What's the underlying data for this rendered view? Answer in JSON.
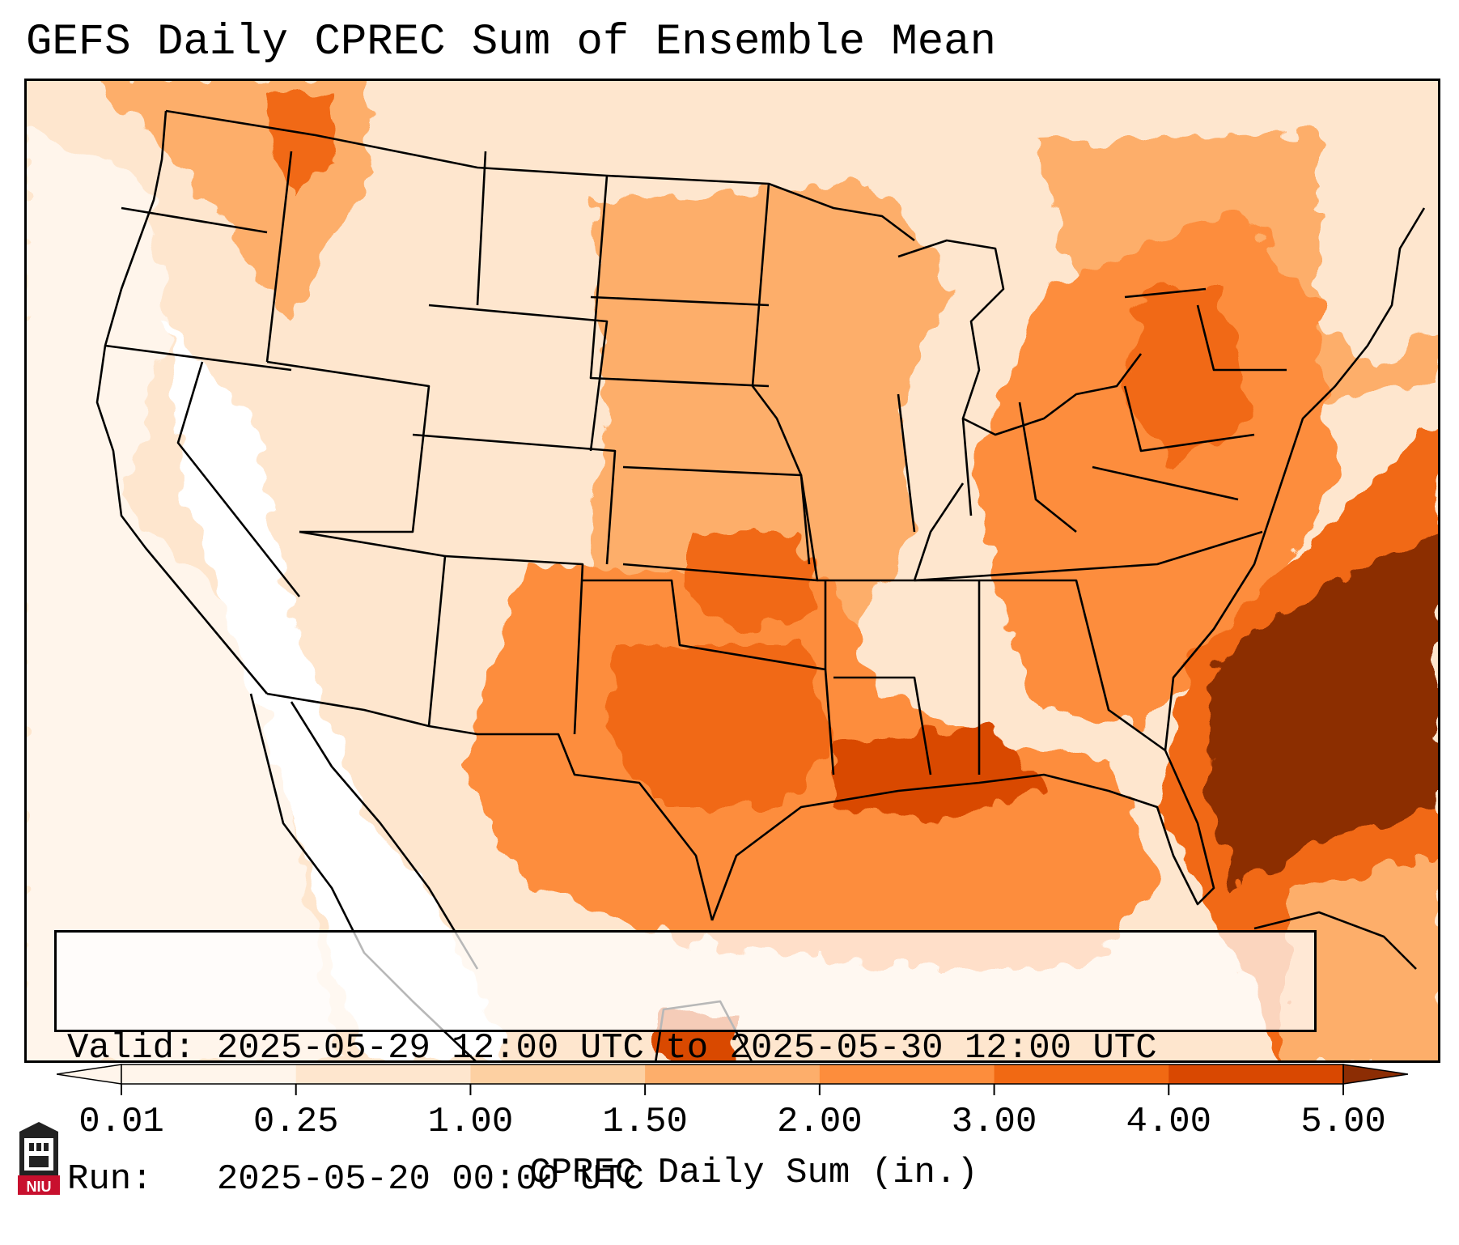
{
  "title": "GEFS Daily CPREC Sum of Ensemble Mean",
  "info": {
    "valid_line": "Valid: 2025-05-29 12:00 UTC to 2025-05-30 12:00 UTC",
    "run_line": "Run:   2025-05-20 00:00 UTC"
  },
  "colorbar": {
    "label": "CPREC Daily Sum (in.)",
    "ticks": [
      "0.01",
      "0.25",
      "1.00",
      "1.50",
      "2.00",
      "3.00",
      "4.00",
      "5.00"
    ],
    "colors": [
      "#fff5eb",
      "#fee6ce",
      "#fdd0a2",
      "#fdae6b",
      "#fd8d3c",
      "#f16913",
      "#d94801",
      "#8c2d04"
    ],
    "extend": "both"
  },
  "logo": {
    "text": "NIU",
    "color": "#c8102e"
  },
  "map": {
    "region": "Continental United States",
    "colormap": "Oranges",
    "max_area": "Southeast US coast and western Atlantic"
  }
}
